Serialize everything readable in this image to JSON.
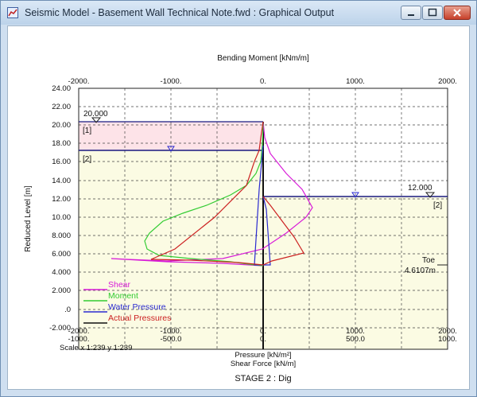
{
  "window": {
    "title": "Seismic Model - Basement Wall Technical Note.fwd : Graphical Output",
    "minimize_icon": "minimize-icon",
    "maximize_icon": "maximize-icon",
    "close_icon": "close-icon"
  },
  "chart": {
    "top_axis_title": "Bending Moment [kNm/m]",
    "top_ticks": [
      "-2000.",
      "-1000.",
      "0.",
      "1000.",
      "2000."
    ],
    "left_axis_title": "Reduced Level [m]",
    "y_ticks": [
      "24.00",
      "22.00",
      "20.00",
      "18.00",
      "16.00",
      "14.00",
      "12.00",
      "10.00",
      "8.000",
      "6.000",
      "4.000",
      "2.000",
      ".0",
      "-2.000"
    ],
    "bottom_ticks_row1": [
      "-2000.",
      "-1000.",
      "0.",
      "1000.",
      "2000."
    ],
    "bottom_ticks_row2": [
      "-1000.",
      "-500.0",
      "0.",
      "500.0",
      "1000."
    ],
    "bottom_title_1": "Pressure [kN/m²]",
    "bottom_title_2": "Shear Force [kN/m]",
    "scale_text": "Scale x 1:239  y 1:239",
    "stage_text": "STAGE 2 : Dig",
    "left_ground_level": "20.000",
    "right_ground_level": "12.000",
    "layer_label_1": "[1]",
    "layer_label_2_left": "[2]",
    "layer_label_2_right": "[2]",
    "toe_label": "Toe",
    "toe_value": "4.6107m",
    "legend": [
      {
        "label": "Shear",
        "color": "#d81bd8"
      },
      {
        "label": "Moment",
        "color": "#33cc33"
      },
      {
        "label": "Water Pressure",
        "color": "#2a2ad0"
      },
      {
        "label": "Actual Pressures",
        "color": "#cc2222"
      }
    ]
  }
}
